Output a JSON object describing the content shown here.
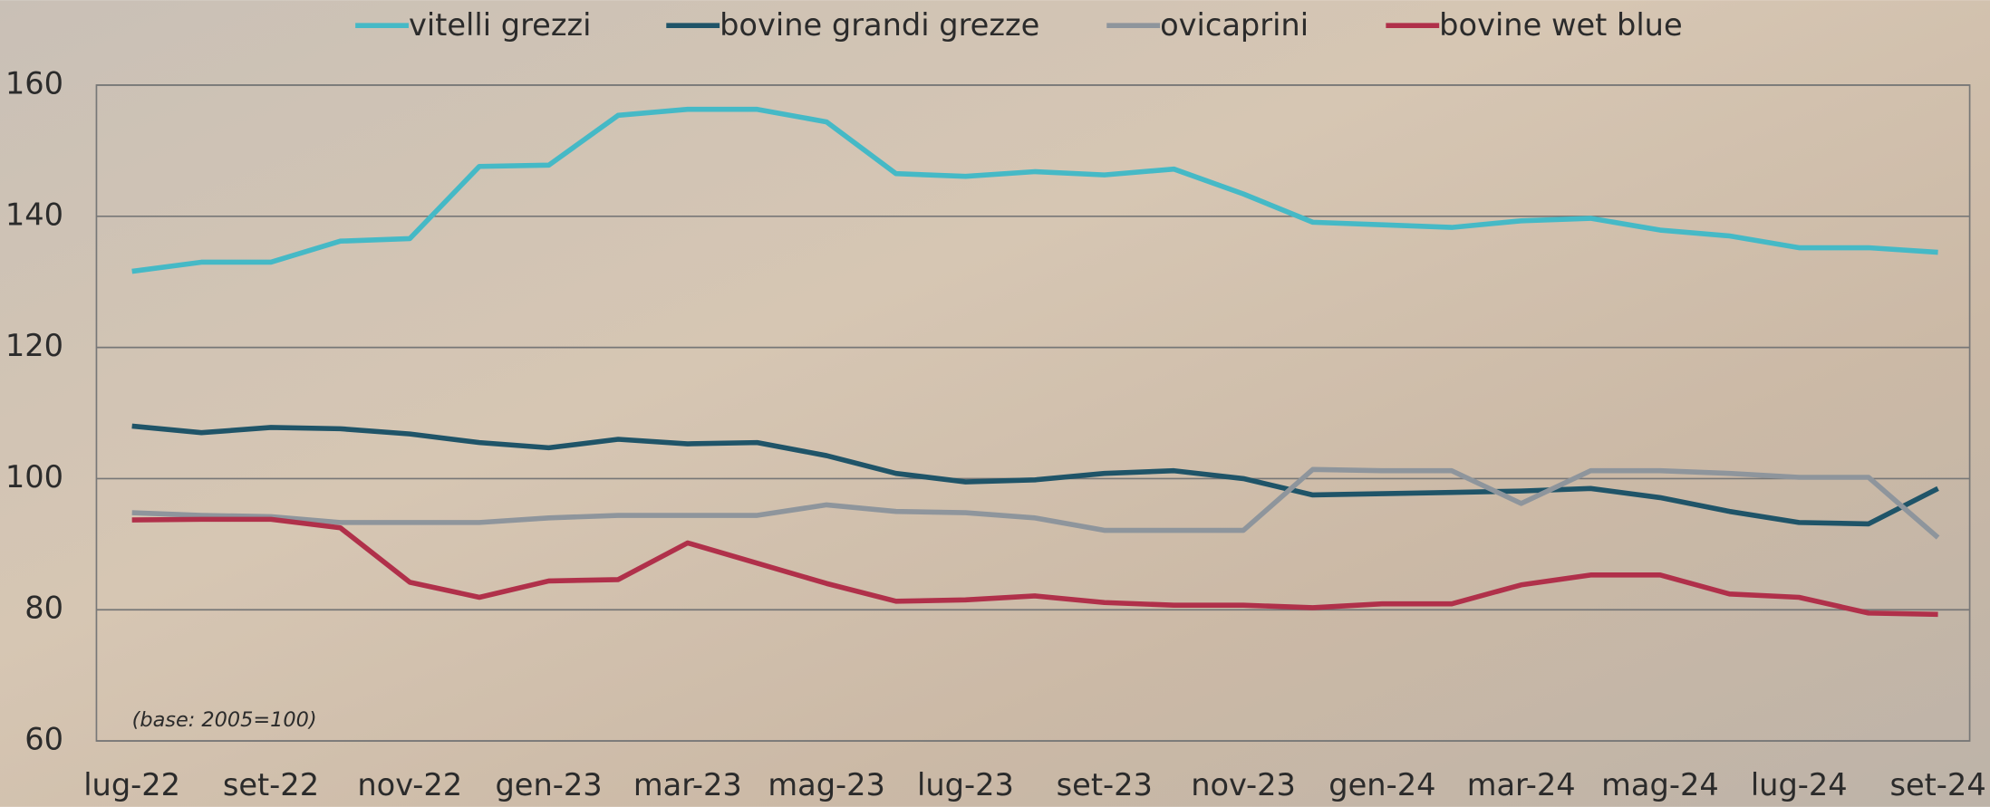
{
  "chart_data": {
    "type": "line",
    "annotation": "(base: 2005=100)",
    "categories": [
      "lug-22",
      null,
      "set-22",
      null,
      "nov-22",
      null,
      "gen-23",
      null,
      "mar-23",
      null,
      "mag-23",
      null,
      "lug-23",
      null,
      "set-23",
      null,
      "nov-23",
      null,
      "gen-24",
      null,
      "mar-24",
      null,
      "mag-24",
      null,
      "lug-24",
      null,
      "set-24"
    ],
    "series": [
      {
        "name": "vitelli grezzi",
        "color": "#45b9c6",
        "values": [
          131.6,
          133,
          133,
          136.2,
          136.6,
          147.6,
          147.8,
          155.4,
          156.3,
          156.3,
          154.4,
          146.5,
          146.1,
          146.8,
          146.3,
          147.2,
          143.4,
          139.1,
          138.7,
          138.3,
          139.3,
          139.7,
          137.9,
          137,
          135.2,
          135.2,
          134.5
        ]
      },
      {
        "name": "bovine grandi grezze",
        "color": "#1f5468",
        "values": [
          108,
          107,
          107.8,
          107.6,
          106.8,
          105.5,
          104.7,
          106,
          105.3,
          105.5,
          103.5,
          100.8,
          99.5,
          99.8,
          100.8,
          101.2,
          100,
          97.5,
          97.7,
          97.9,
          98.1,
          98.5,
          97.1,
          95,
          93.3,
          93.1,
          98.5
        ]
      },
      {
        "name": "ovicaprini",
        "color": "#8e959c",
        "values": [
          94.8,
          94.4,
          94.2,
          93.3,
          93.3,
          93.3,
          94,
          94.4,
          94.4,
          94.4,
          96,
          95,
          94.8,
          94,
          92.1,
          92.1,
          92.1,
          101.4,
          101.2,
          101.2,
          96.2,
          101.2,
          101.2,
          100.8,
          100.2,
          100.2,
          91
        ]
      },
      {
        "name": "bovine wet blue",
        "color": "#b0304a",
        "values": [
          93.7,
          93.8,
          93.8,
          92.5,
          84.2,
          81.9,
          84.4,
          84.6,
          90.2,
          87.1,
          84,
          81.3,
          81.5,
          82.1,
          81.1,
          80.7,
          80.7,
          80.3,
          80.9,
          80.9,
          83.8,
          85.3,
          85.3,
          82.4,
          81.9,
          79.5,
          79.3
        ]
      }
    ],
    "ylim": [
      60,
      160
    ],
    "yticks": [
      60,
      80,
      100,
      120,
      140,
      160
    ],
    "grid": true,
    "legend": "top"
  }
}
